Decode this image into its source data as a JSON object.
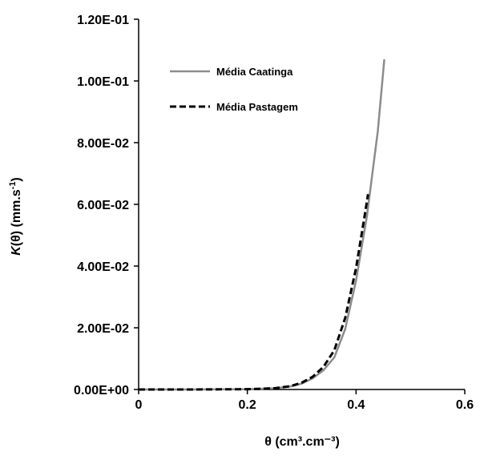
{
  "chart_data": {
    "type": "line",
    "xlabel": "θ (cm³.cm⁻³)",
    "ylabel_parts": [
      "K",
      "(θ) (mm.s",
      "-1",
      ")"
    ],
    "xlim": [
      0,
      0.6
    ],
    "ylim": [
      0,
      0.12
    ],
    "x_ticks": [
      0,
      0.2,
      0.4,
      0.6
    ],
    "x_tick_labels": [
      "0",
      "0.2",
      "0.4",
      "0.6"
    ],
    "y_ticks": [
      0,
      0.02,
      0.04,
      0.06,
      0.08,
      0.1,
      0.12
    ],
    "y_tick_labels": [
      "0.00E+00",
      "2.00E-02",
      "4.00E-02",
      "6.00E-02",
      "8.00E-02",
      "1.00E-01",
      "1.20E-01"
    ],
    "grid": false,
    "legend_position": "top-left",
    "series": [
      {
        "name": "Média Caatinga",
        "color": "#8c8c8c",
        "style": "solid",
        "x": [
          0.0,
          0.1,
          0.2,
          0.25,
          0.28,
          0.3,
          0.32,
          0.34,
          0.36,
          0.38,
          0.4,
          0.42,
          0.44,
          0.452
        ],
        "y": [
          0.0,
          0.0,
          0.0001,
          0.0004,
          0.001,
          0.0019,
          0.0036,
          0.0062,
          0.0104,
          0.0196,
          0.0353,
          0.0562,
          0.0838,
          0.107
        ]
      },
      {
        "name": "Média Pastagem",
        "color": "#000000",
        "style": "dashed",
        "x": [
          0.0,
          0.1,
          0.2,
          0.25,
          0.28,
          0.3,
          0.32,
          0.34,
          0.36,
          0.38,
          0.4,
          0.415,
          0.422
        ],
        "y": [
          0.0,
          0.0,
          0.0001,
          0.0004,
          0.0011,
          0.0022,
          0.0041,
          0.0073,
          0.0127,
          0.0232,
          0.0393,
          0.0554,
          0.0633
        ]
      }
    ]
  }
}
